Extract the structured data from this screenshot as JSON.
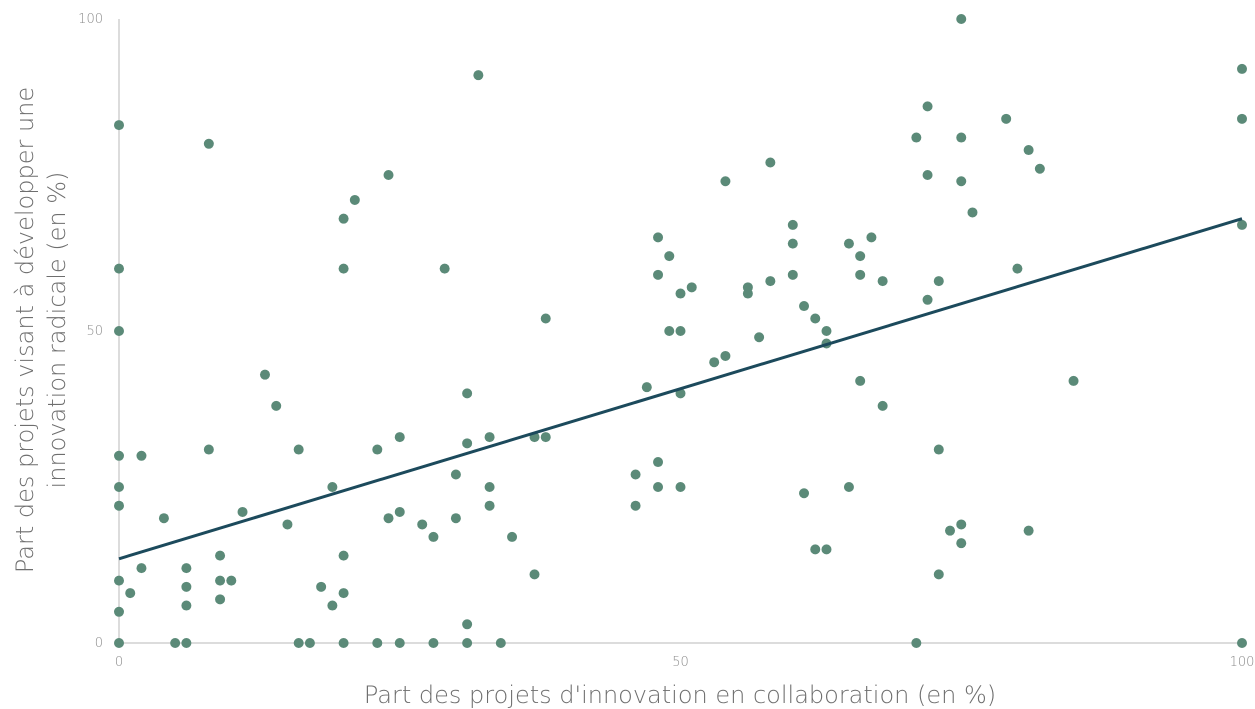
{
  "chart_data": {
    "type": "scatter",
    "xlabel": "Part des projets d'innovation en collaboration (en %)",
    "ylabel_line1": "Part des projets visant à développer une",
    "ylabel_line2": "innovation radicale (en %)",
    "xlim": [
      0,
      100
    ],
    "ylim": [
      0,
      100
    ],
    "x_ticks": [
      "0",
      "50",
      "100"
    ],
    "y_ticks": [
      "0",
      "50",
      "100"
    ],
    "grid": false,
    "colors": {
      "points": "#5b8a78",
      "trendline": "#1c4a5c",
      "axis": "#d0d0d0"
    },
    "trendline": {
      "x": [
        0,
        100
      ],
      "y": [
        13.5,
        68
      ]
    },
    "points": [
      [
        0,
        83
      ],
      [
        0,
        60
      ],
      [
        0,
        50
      ],
      [
        0,
        30
      ],
      [
        0,
        25
      ],
      [
        0,
        22
      ],
      [
        0,
        10
      ],
      [
        0,
        5
      ],
      [
        0,
        0
      ],
      [
        1,
        8
      ],
      [
        2,
        30
      ],
      [
        2,
        12
      ],
      [
        4,
        20
      ],
      [
        5,
        0
      ],
      [
        6,
        12
      ],
      [
        6,
        9
      ],
      [
        6,
        6
      ],
      [
        6,
        0
      ],
      [
        8,
        80
      ],
      [
        8,
        31
      ],
      [
        9,
        14
      ],
      [
        9,
        10
      ],
      [
        9,
        7
      ],
      [
        10,
        10
      ],
      [
        11,
        21
      ],
      [
        13,
        43
      ],
      [
        14,
        38
      ],
      [
        15,
        19
      ],
      [
        16,
        31
      ],
      [
        16,
        0
      ],
      [
        17,
        0
      ],
      [
        18,
        9
      ],
      [
        19,
        6
      ],
      [
        19,
        25
      ],
      [
        20,
        68
      ],
      [
        20,
        60
      ],
      [
        20,
        14
      ],
      [
        20,
        8
      ],
      [
        20,
        0
      ],
      [
        21,
        71
      ],
      [
        23,
        31
      ],
      [
        23,
        0
      ],
      [
        24,
        75
      ],
      [
        24,
        20
      ],
      [
        25,
        33
      ],
      [
        25,
        21
      ],
      [
        25,
        0
      ],
      [
        27,
        19
      ],
      [
        28,
        17
      ],
      [
        28,
        0
      ],
      [
        29,
        60
      ],
      [
        30,
        27
      ],
      [
        30,
        20
      ],
      [
        31,
        40
      ],
      [
        31,
        32
      ],
      [
        31,
        3
      ],
      [
        31,
        0
      ],
      [
        32,
        91
      ],
      [
        33,
        33
      ],
      [
        33,
        25
      ],
      [
        33,
        22
      ],
      [
        34,
        0
      ],
      [
        35,
        17
      ],
      [
        37,
        11
      ],
      [
        37,
        33
      ],
      [
        38,
        52
      ],
      [
        38,
        33
      ],
      [
        46,
        27
      ],
      [
        46,
        22
      ],
      [
        47,
        41
      ],
      [
        48,
        65
      ],
      [
        48,
        59
      ],
      [
        48,
        29
      ],
      [
        48,
        25
      ],
      [
        49,
        62
      ],
      [
        49,
        50
      ],
      [
        50,
        56
      ],
      [
        50,
        50
      ],
      [
        50,
        40
      ],
      [
        50,
        25
      ],
      [
        51,
        57
      ],
      [
        53,
        45
      ],
      [
        54,
        74
      ],
      [
        54,
        46
      ],
      [
        56,
        57
      ],
      [
        56,
        56
      ],
      [
        57,
        49
      ],
      [
        58,
        77
      ],
      [
        58,
        58
      ],
      [
        60,
        67
      ],
      [
        60,
        64
      ],
      [
        60,
        59
      ],
      [
        61,
        54
      ],
      [
        61,
        24
      ],
      [
        62,
        52
      ],
      [
        62,
        15
      ],
      [
        63,
        50
      ],
      [
        63,
        48
      ],
      [
        63,
        15
      ],
      [
        65,
        64
      ],
      [
        65,
        25
      ],
      [
        66,
        62
      ],
      [
        66,
        59
      ],
      [
        66,
        42
      ],
      [
        67,
        65
      ],
      [
        68,
        58
      ],
      [
        68,
        38
      ],
      [
        71,
        81
      ],
      [
        71,
        0
      ],
      [
        72,
        86
      ],
      [
        72,
        75
      ],
      [
        72,
        55
      ],
      [
        73,
        58
      ],
      [
        73,
        31
      ],
      [
        73,
        11
      ],
      [
        74,
        18
      ],
      [
        75,
        100
      ],
      [
        75,
        81
      ],
      [
        75,
        74
      ],
      [
        75,
        19
      ],
      [
        75,
        16
      ],
      [
        76,
        69
      ],
      [
        79,
        84
      ],
      [
        80,
        60
      ],
      [
        81,
        79
      ],
      [
        81,
        18
      ],
      [
        82,
        76
      ],
      [
        85,
        42
      ],
      [
        100,
        92
      ],
      [
        100,
        84
      ],
      [
        100,
        67
      ],
      [
        100,
        0
      ]
    ]
  }
}
